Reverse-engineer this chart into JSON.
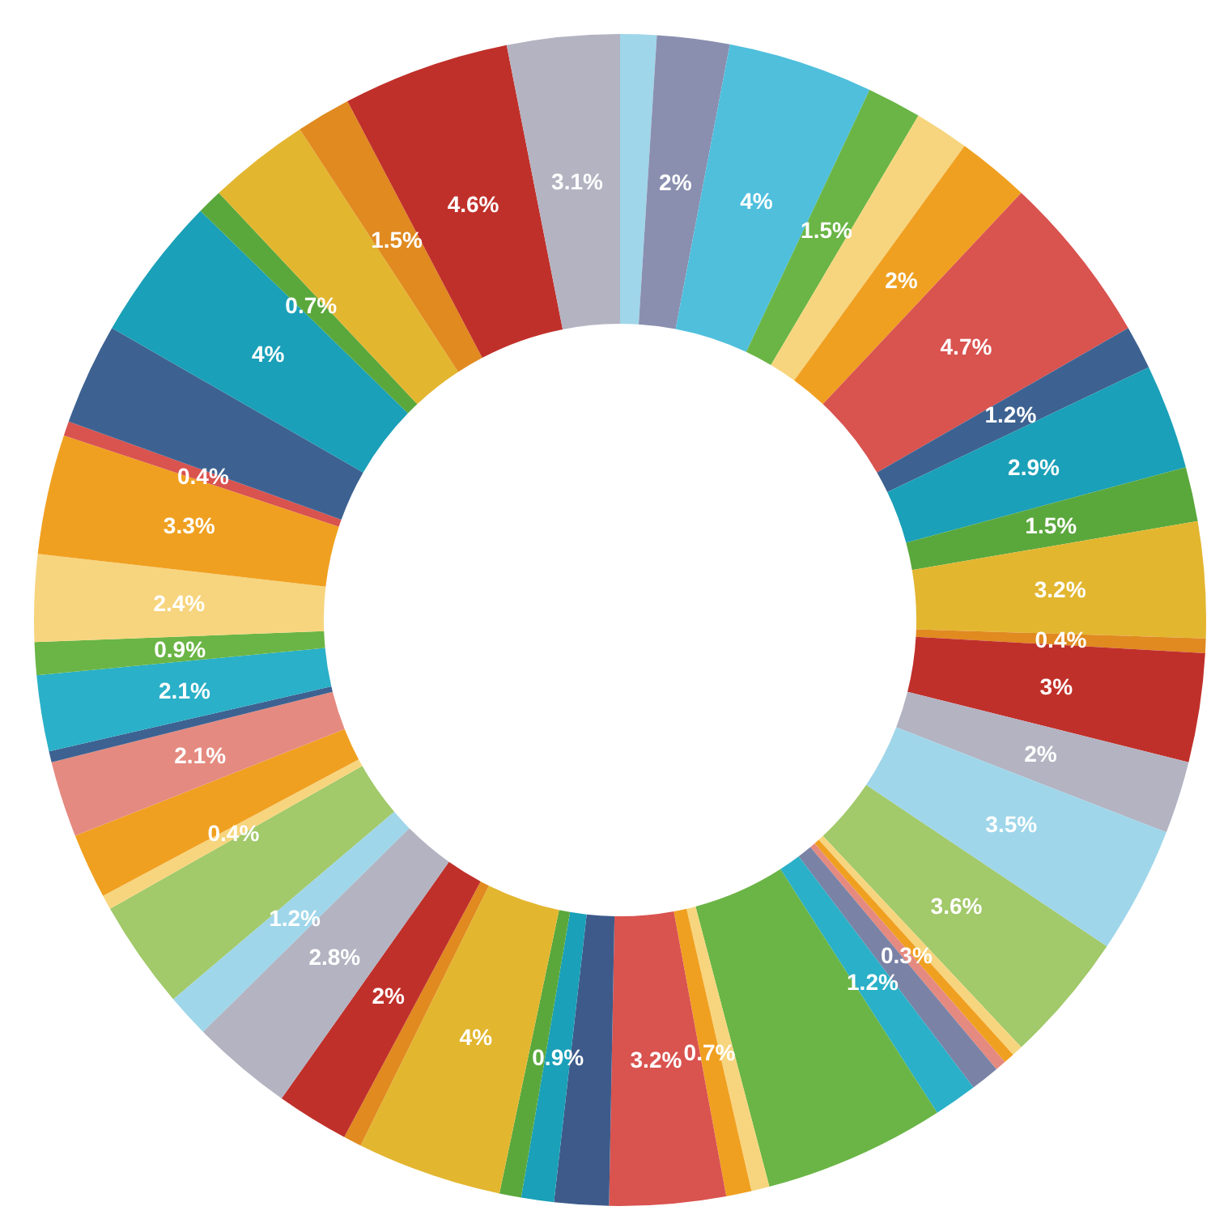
{
  "chart_data": {
    "type": "donut",
    "categories": [
      null,
      null,
      null,
      null,
      null,
      null,
      null,
      null,
      null,
      null,
      null,
      null,
      null,
      null,
      null,
      null,
      null,
      null,
      null,
      null,
      null,
      null,
      null,
      null,
      null,
      null,
      null,
      null,
      null,
      null,
      null,
      null,
      null,
      null,
      null,
      null,
      null,
      null,
      null,
      null,
      null,
      null,
      null,
      null,
      null,
      null,
      null,
      null,
      null,
      null
    ],
    "values": [
      1.0,
      2,
      4,
      1.5,
      1.5,
      2,
      4.7,
      1.2,
      2.9,
      1.5,
      3.2,
      0.4,
      3,
      2,
      3.5,
      3.6,
      0.3,
      0.3,
      0.3,
      0.8,
      1.2,
      5.0,
      0.5,
      0.7,
      3.2,
      1.5,
      0.9,
      0.6,
      4,
      0.5,
      2,
      2.8,
      1.2,
      3.0,
      0.4,
      1.8,
      2.1,
      0.3,
      2.1,
      0.9,
      2.4,
      3.3,
      0.4,
      2.8,
      4,
      0.7,
      2.8,
      1.5,
      4.6,
      3.1
    ],
    "value_labels": [
      null,
      "2%",
      "4%",
      "1.5%",
      null,
      "2%",
      "4.7%",
      "1.2%",
      "2.9%",
      "1.5%",
      "3.2%",
      "0.4%",
      "3%",
      "2%",
      "3.5%",
      "3.6%",
      null,
      null,
      "0.3%",
      null,
      "1.2%",
      null,
      null,
      "0.7%",
      "3.2%",
      null,
      "0.9%",
      null,
      "4%",
      null,
      "2%",
      "2.8%",
      "1.2%",
      null,
      "0.4%",
      null,
      "2.1%",
      null,
      "2.1%",
      "0.9%",
      "2.4%",
      "3.3%",
      "0.4%",
      null,
      "4%",
      "0.7%",
      null,
      "1.5%",
      "4.6%",
      "3.1%"
    ],
    "colors": [
      "#9fd6ea",
      "#8a8fb0",
      "#4fbfdc",
      "#6ab545",
      "#f7d57e",
      "#f0a020",
      "#d9534f",
      "#3d6291",
      "#1aa0b8",
      "#5aa83c",
      "#e3b630",
      "#e08a20",
      "#c0302a",
      "#b3b3c2",
      "#9fd6ea",
      "#a2c96a",
      "#f7d57e",
      "#f0a020",
      "#e58a80",
      "#7a82a6",
      "#2ab0c8",
      "#6ab545",
      "#f7d57e",
      "#f0a020",
      "#d9534f",
      "#3d5a8a",
      "#1aa0b8",
      "#5aa83c",
      "#e3b630",
      "#e08a20",
      "#c0302a",
      "#b3b3c2",
      "#9fd6ea",
      "#a2c96a",
      "#f7d57e",
      "#f0a020",
      "#e58a80",
      "#3d6291",
      "#2ab0c8",
      "#6ab545",
      "#f7d57e",
      "#f0a020",
      "#d9534f",
      "#3d6291",
      "#1aa0b8",
      "#5aa83c",
      "#e3b630",
      "#e08a20",
      "#c0302a",
      "#b3b3c2"
    ]
  }
}
